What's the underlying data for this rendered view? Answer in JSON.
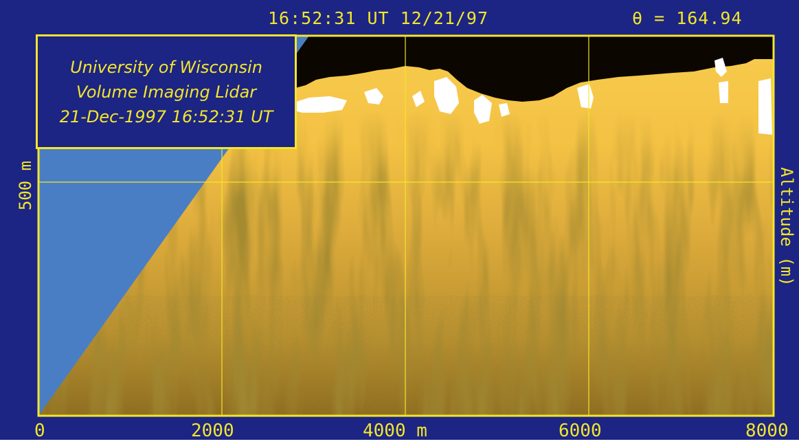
{
  "header": {
    "timestamp": "16:52:31 UT 12/21/97",
    "angle": "θ = 164.94"
  },
  "legend": {
    "line1": "University of Wisconsin",
    "line2": "Volume Imaging Lidar",
    "line3": "21-Dec-1997 16:52:31 UT"
  },
  "colors": {
    "frame": "#1c2484",
    "axis_yellow": "#f3e62a",
    "no_data_blue": "#4a7ec4",
    "lidar_bright": "#f7c94a",
    "lidar_dark": "#7a5a12",
    "cloud_top_black": "#0b0700",
    "white_saturation": "#ffffff"
  },
  "chart_data": {
    "type": "heatmap",
    "title": "University of Wisconsin Volume Imaging Lidar",
    "xlabel": "m",
    "ylabel_left": "m",
    "ylabel_right": "Altitude (m)",
    "xlim": [
      0,
      8000
    ],
    "x_ticks": [
      0,
      2000,
      4000,
      6000,
      8000
    ],
    "x_tick_labels": [
      "0",
      "2000",
      "4000 m",
      "6000",
      "8000"
    ],
    "y_ticks": [
      500
    ],
    "y_tick_labels": [
      "500"
    ],
    "grid": true
  }
}
